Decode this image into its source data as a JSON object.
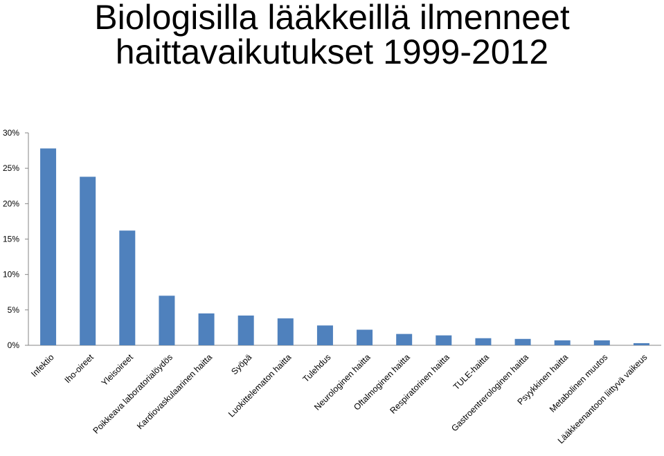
{
  "chart_data": {
    "type": "bar",
    "title_lines": [
      "Biologisilla lääkkeillä ilmenneet",
      "haittavaikutukset 1999-2012"
    ],
    "categories": [
      "Infektio",
      "Iho-oireet",
      "Yleisoireet",
      "Poikkeava laboratorialöydös",
      "Kardiovaskulaarinen haitta",
      "Syöpä",
      "Luokittelematon haitta",
      "Tulehdus",
      "Neurologinen haitta",
      "Oftalmoginen haitta",
      "Respiratorinen haitta",
      "TULE-haitta",
      "Gastroentrerologinen haitta",
      "Psyykkinen haitta",
      "Metabolinen muutos",
      "Lääkkeenantoon liittyvä vaikeus"
    ],
    "values": [
      27.8,
      23.8,
      16.2,
      7.0,
      4.5,
      4.2,
      3.8,
      2.8,
      2.2,
      1.6,
      1.4,
      1.0,
      0.9,
      0.7,
      0.7,
      0.3
    ],
    "ylim": [
      0,
      30
    ],
    "yticks": [
      "0%",
      "5%",
      "10%",
      "15%",
      "20%",
      "25%",
      "30%"
    ],
    "ytick_values": [
      0,
      5,
      10,
      15,
      20,
      25,
      30
    ],
    "bar_color": "#4f81bd",
    "axis_color": "#868686",
    "grid": false,
    "legend": "none"
  }
}
